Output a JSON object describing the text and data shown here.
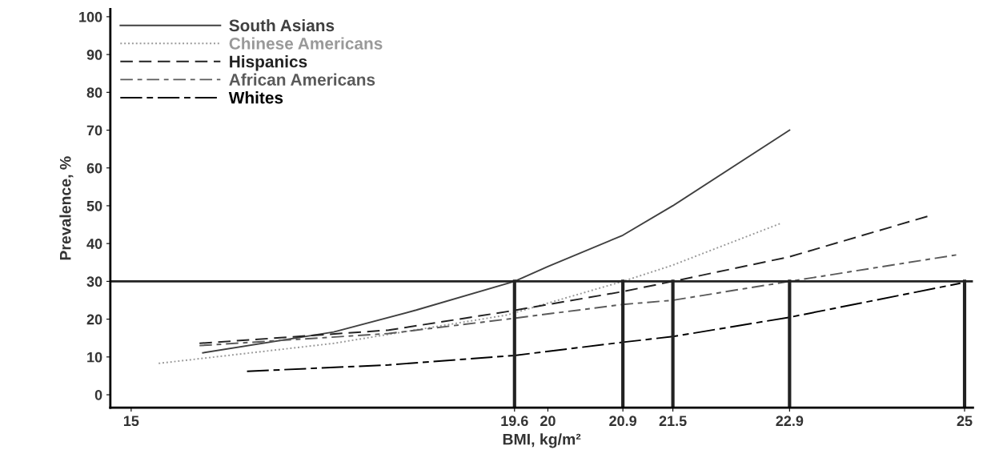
{
  "chart_data": {
    "type": "line",
    "xlabel": "BMI, kg/m²",
    "ylabel": "Prevalence, %",
    "xlim": [
      14.75,
      25.1
    ],
    "ylim": [
      -3.4,
      102
    ],
    "xticks": [
      15,
      19.6,
      20,
      20.9,
      21.5,
      22.9,
      25
    ],
    "yticks": [
      0,
      10,
      20,
      30,
      40,
      50,
      60,
      70,
      80,
      90,
      100
    ],
    "grid": false,
    "legend": "top left",
    "marker": "none",
    "series": [
      {
        "name": "South Asians",
        "color": "#404040",
        "line_style": "solid",
        "x": [
          15.86,
          17.43,
          18.42,
          19.6,
          20,
          20.9,
          21.5,
          22.9
        ],
        "values": [
          11.1,
          16.6,
          22.4,
          30,
          33.9,
          42.2,
          50,
          70
        ]
      },
      {
        "name": "Chinese Americans",
        "color": "#999999",
        "line_style": "dotted",
        "x": [
          15.33,
          17.43,
          19.51,
          20.9,
          21.5,
          22.8
        ],
        "values": [
          8.3,
          13.6,
          21.1,
          30,
          34.3,
          45.4
        ]
      },
      {
        "name": "Hispanics",
        "color": "#222222",
        "line_style": "dashed",
        "x": [
          15.82,
          18.09,
          19.51,
          20.9,
          21.5,
          22.9,
          24.57
        ],
        "values": [
          13.6,
          17.1,
          22,
          27.3,
          30,
          36.5,
          47.3
        ]
      },
      {
        "name": "African Americans",
        "color": "#5a5a5a",
        "line_style": "dashdot",
        "x": [
          15.82,
          18.09,
          19.51,
          20.9,
          21.5,
          22.9,
          24.93
        ],
        "values": [
          13,
          16.2,
          20,
          23.9,
          25,
          30,
          37.1
        ]
      },
      {
        "name": "Whites",
        "color": "#000000",
        "line_style": "longdashdot",
        "x": [
          16.39,
          18.09,
          19.6,
          20.9,
          21.5,
          22.9,
          24.95
        ],
        "values": [
          6.2,
          7.9,
          10.4,
          13.9,
          15.4,
          20.5,
          29.5
        ]
      }
    ],
    "ref_lines": [
      {
        "axis": "y",
        "value": 30,
        "color": "#222222"
      },
      {
        "axis": "x",
        "value": 19.6,
        "color": "#222222"
      },
      {
        "axis": "x",
        "value": 20.9,
        "color": "#222222"
      },
      {
        "axis": "x",
        "value": 21.5,
        "color": "#222222"
      },
      {
        "axis": "x",
        "value": 22.9,
        "color": "#222222"
      },
      {
        "axis": "x",
        "value": 25,
        "color": "#222222"
      }
    ]
  }
}
